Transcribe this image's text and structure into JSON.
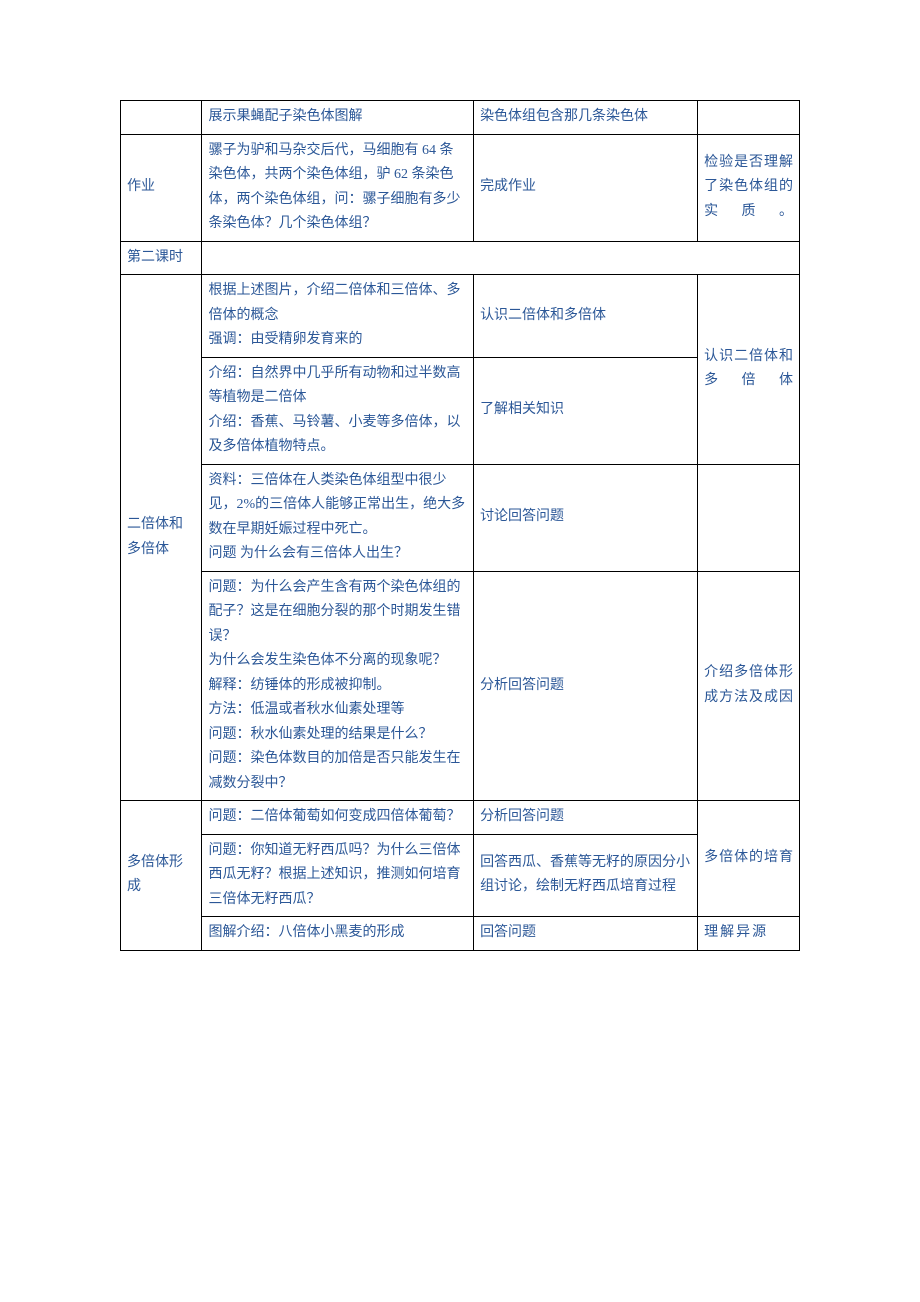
{
  "text_color": "#2b5797",
  "border_color": "#000000",
  "background_color": "#ffffff",
  "font_size": 14,
  "rows": [
    {
      "c1": "",
      "c2": "展示果蝇配子染色体图解",
      "c3": "染色体组包含那几条染色体",
      "c4": ""
    },
    {
      "c1": "作业",
      "c2": "骡子为驴和马杂交后代，马细胞有 64 条染色体，共两个染色体组，驴 62 条染色体，两个染色体组，问：骡子细胞有多少条染色体？几个染色体组？",
      "c3": "完成作业",
      "c4": "检验是否理解了染色体组的实质。"
    },
    {
      "c1": "第二课时"
    },
    {
      "c1": "二倍体和多倍体",
      "group1": [
        {
          "c2": "根据上述图片，介绍二倍体和三倍体、多倍体的概念\n强调：由受精卵发育来的",
          "c3": "认识二倍体和多倍体"
        },
        {
          "c2": "介绍：自然界中几乎所有动物和过半数高等植物是二倍体\n介绍：香蕉、马铃薯、小麦等多倍体，以及多倍体植物特点。",
          "c3": "了解相关知识"
        }
      ],
      "c4a": "认识二倍体和多倍体",
      "group2": [
        {
          "c2": "资料：三倍体在人类染色体组型中很少见，2%的三倍体人能够正常出生，绝大多数在早期妊娠过程中死亡。\n问题 为什么会有三倍体人出生？",
          "c3": "讨论回答问题",
          "c4": ""
        },
        {
          "c2": "问题：为什么会产生含有两个染色体组的配子？这是在细胞分裂的那个时期发生错误？\n为什么会发生染色体不分离的现象呢？\n解释：纺锤体的形成被抑制。\n方法：低温或者秋水仙素处理等\n问题：秋水仙素处理的结果是什么？\n问题：染色体数目的加倍是否只能发生在减数分裂中？",
          "c3": "分析回答问题",
          "c4": "介绍多倍体形成方法及成因"
        }
      ]
    },
    {
      "c1": "多倍体形成",
      "rows": [
        {
          "c2": "问题：二倍体葡萄如何变成四倍体葡萄？",
          "c3": "分析回答问题"
        },
        {
          "c2": "问题：你知道无籽西瓜吗？为什么三倍体西瓜无籽？根据上述知识，推测如何培育三倍体无籽西瓜？",
          "c3": "回答西瓜、香蕉等无籽的原因分小组讨论，绘制无籽西瓜培育过程"
        }
      ],
      "c4": "多倍体的培育",
      "last": {
        "c2": "图解介绍：八倍体小黑麦的形成",
        "c3": "回答问题",
        "c4": "理解异源"
      }
    }
  ]
}
